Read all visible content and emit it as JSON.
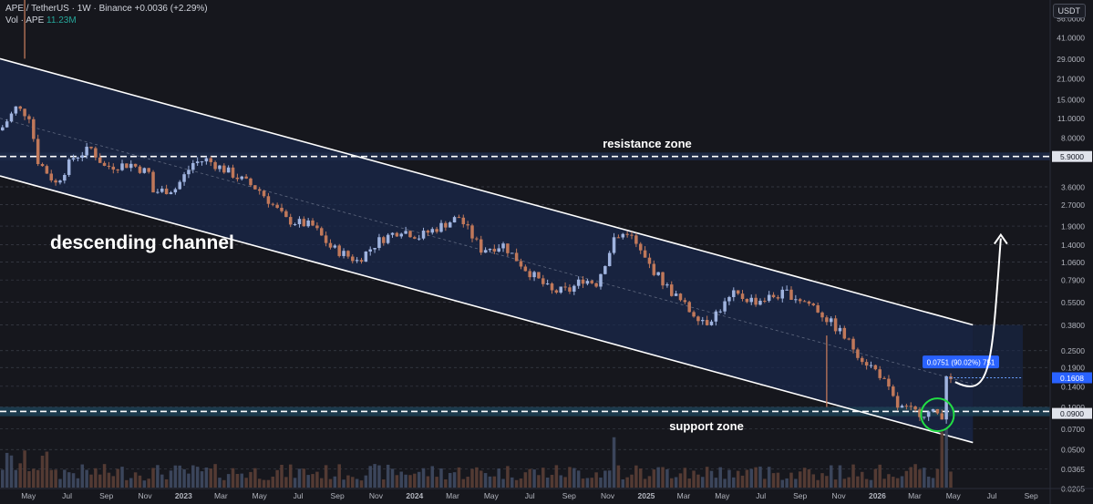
{
  "header": {
    "symbol": "APE / TetherUS · 1W · Binance",
    "change": "+0.0036 (+2.29%)",
    "volume_label": "Vol · APE",
    "volume_value": "11.23M"
  },
  "currency_button": "USDT",
  "colors": {
    "background": "#16171d",
    "channel_fill": "#1a2a4e",
    "up_candle": "#9fb3df",
    "down_candle": "#c0785a",
    "support_zone": "#1d3e52",
    "highlight_circle": "#22dd44",
    "price_tag": "#2962ff"
  },
  "chart_data": {
    "type": "candlestick",
    "y_scale": "log",
    "y_range": [
      0.0265,
      65
    ],
    "y_ticks": [
      56.0,
      41.0,
      29.0,
      21.0,
      15.0,
      11.0,
      8.0,
      5.9,
      3.6,
      2.7,
      1.9,
      1.4,
      1.06,
      0.79,
      0.55,
      0.38,
      0.25,
      0.19,
      0.14,
      0.1,
      0.09,
      0.07,
      0.05,
      0.0365,
      0.0265
    ],
    "y_tick_labels": [
      "56.0000",
      "41.0000",
      "29.0000",
      "21.0000",
      "15.0000",
      "11.0000",
      "8.0000",
      "5.9000",
      "3.6000",
      "2.7000",
      "1.9000",
      "1.4000",
      "1.0600",
      "0.7900",
      "0.5500",
      "0.3800",
      "0.2500",
      "0.1900",
      "0.1400",
      "0.1000",
      "0.0900",
      "0.0700",
      "0.0500",
      "0.0365",
      "0.0265"
    ],
    "x_labels": [
      "May",
      "Jul",
      "Sep",
      "Nov",
      "2023",
      "Mar",
      "May",
      "Jul",
      "Sep",
      "Nov",
      "2024",
      "Mar",
      "May",
      "Jul",
      "Sep",
      "Nov",
      "2025",
      "Mar",
      "May",
      "Jul",
      "Sep",
      "Nov",
      "2026",
      "Mar",
      "May",
      "Jul",
      "Sep"
    ],
    "x_range": [
      "2022-03-17",
      "2026-10-01"
    ],
    "x_tick_dates": [
      "2022-05-01",
      "2022-07-01",
      "2022-09-01",
      "2022-11-01",
      "2023-01-01",
      "2023-03-01",
      "2023-05-01",
      "2023-07-01",
      "2023-09-01",
      "2023-11-01",
      "2024-01-01",
      "2024-03-01",
      "2024-05-01",
      "2024-07-01",
      "2024-09-01",
      "2024-11-01",
      "2025-01-01",
      "2025-03-01",
      "2025-05-01",
      "2025-07-01",
      "2025-09-01",
      "2025-11-01",
      "2026-01-01",
      "2026-03-01",
      "2026-05-01",
      "2026-07-01",
      "2026-09-01"
    ],
    "anchors": [
      {
        "date": "2022-03-21",
        "price": 9.5
      },
      {
        "date": "2022-04-11",
        "price": 13.0
      },
      {
        "date": "2022-05-02",
        "price": 11.5
      },
      {
        "date": "2022-05-16",
        "price": 5.5
      },
      {
        "date": "2022-06-13",
        "price": 3.8
      },
      {
        "date": "2022-07-11",
        "price": 5.8
      },
      {
        "date": "2022-08-08",
        "price": 6.7
      },
      {
        "date": "2022-08-29",
        "price": 5.0
      },
      {
        "date": "2022-10-10",
        "price": 5.2
      },
      {
        "date": "2022-11-07",
        "price": 4.5
      },
      {
        "date": "2022-11-14",
        "price": 3.3
      },
      {
        "date": "2022-12-19",
        "price": 3.5
      },
      {
        "date": "2023-01-16",
        "price": 5.3
      },
      {
        "date": "2023-02-06",
        "price": 5.6
      },
      {
        "date": "2023-03-20",
        "price": 4.4
      },
      {
        "date": "2023-05-01",
        "price": 3.4
      },
      {
        "date": "2023-06-12",
        "price": 2.1
      },
      {
        "date": "2023-07-24",
        "price": 1.9
      },
      {
        "date": "2023-08-21",
        "price": 1.35
      },
      {
        "date": "2023-10-02",
        "price": 1.08
      },
      {
        "date": "2023-11-06",
        "price": 1.5
      },
      {
        "date": "2023-12-11",
        "price": 1.8
      },
      {
        "date": "2024-01-08",
        "price": 1.6
      },
      {
        "date": "2024-02-26",
        "price": 2.05
      },
      {
        "date": "2024-03-11",
        "price": 2.2
      },
      {
        "date": "2024-04-15",
        "price": 1.3
      },
      {
        "date": "2024-05-20",
        "price": 1.4
      },
      {
        "date": "2024-06-24",
        "price": 0.95
      },
      {
        "date": "2024-08-05",
        "price": 0.65
      },
      {
        "date": "2024-09-02",
        "price": 0.67
      },
      {
        "date": "2024-09-23",
        "price": 0.8
      },
      {
        "date": "2024-10-14",
        "price": 0.75
      },
      {
        "date": "2024-11-11",
        "price": 1.5
      },
      {
        "date": "2024-12-02",
        "price": 1.75
      },
      {
        "date": "2024-12-30",
        "price": 1.1
      },
      {
        "date": "2025-02-03",
        "price": 0.7
      },
      {
        "date": "2025-03-10",
        "price": 0.48
      },
      {
        "date": "2025-04-07",
        "price": 0.4
      },
      {
        "date": "2025-05-19",
        "price": 0.62
      },
      {
        "date": "2025-06-23",
        "price": 0.56
      },
      {
        "date": "2025-08-11",
        "price": 0.64
      },
      {
        "date": "2025-09-22",
        "price": 0.52
      },
      {
        "date": "2025-10-06",
        "price": 0.45
      },
      {
        "date": "2025-11-03",
        "price": 0.34
      },
      {
        "date": "2025-12-08",
        "price": 0.22
      },
      {
        "date": "2026-01-05",
        "price": 0.17
      },
      {
        "date": "2026-02-02",
        "price": 0.1
      },
      {
        "date": "2026-03-02",
        "price": 0.092
      },
      {
        "date": "2026-04-06",
        "price": 0.09
      },
      {
        "date": "2026-04-13",
        "price": 0.088
      },
      {
        "date": "2026-04-20",
        "price": 0.16
      },
      {
        "date": "2026-04-27",
        "price": 0.1608
      }
    ],
    "wick_spikes": [
      {
        "date": "2022-04-25",
        "price": 29.0
      },
      {
        "date": "2025-10-13",
        "price": 0.1
      }
    ],
    "volume_spikes": [
      {
        "date": "2024-11-11",
        "level": 0.85
      },
      {
        "date": "2026-04-13",
        "level": 0.95
      },
      {
        "date": "2026-04-20",
        "level": 1.0
      }
    ],
    "channel": {
      "upper": [
        {
          "date": "2022-03-17",
          "price": 29.0
        },
        {
          "date": "2026-06-01",
          "price": 0.38
        }
      ],
      "lower": [
        {
          "date": "2022-03-17",
          "price": 4.3
        },
        {
          "date": "2026-06-01",
          "price": 0.056
        }
      ]
    },
    "resistance_zone": [
      5.55,
      6.3
    ],
    "support_zone": [
      0.086,
      0.1
    ],
    "resistance_label": "resistance zone",
    "support_label": "support zone",
    "channel_label": "descending channel",
    "measure_label": "0.0751 (90.02%) 751",
    "last_price": "0.1608",
    "last_price_value": 0.1608,
    "highlight_circle": {
      "date": "2026-04-06",
      "price": 0.088
    },
    "arrow": {
      "from": {
        "date": "2026-05-04",
        "price": 0.15
      },
      "to": {
        "date": "2026-07-15",
        "price": 1.65
      }
    },
    "vertical_marker": {
      "date": "2022-03-14",
      "high": 11.0,
      "low": 1.0
    }
  }
}
